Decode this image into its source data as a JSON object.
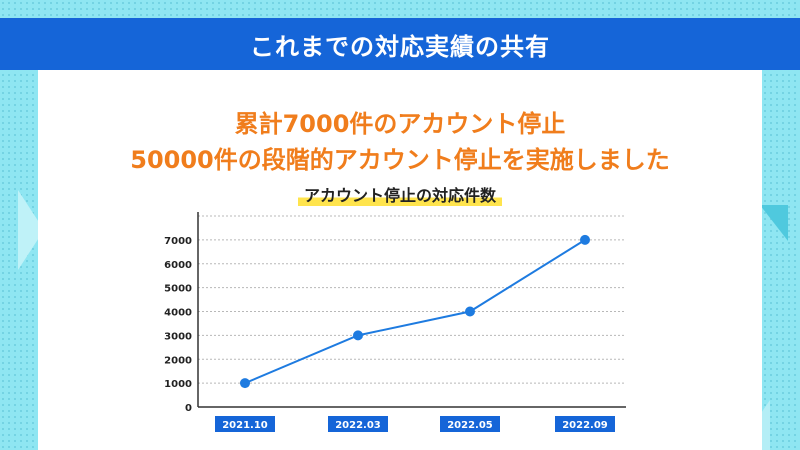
{
  "banner": {
    "title": "これまでの対応実績の共有"
  },
  "headline": {
    "line1": "累計7000件のアカウント停止",
    "line2": "50000件の段階的アカウント停止を実施しました"
  },
  "colors": {
    "banner": "#1565d8",
    "headline": "#f07d1c",
    "line": "#1e7be0",
    "point": "#1e7be0",
    "label_bg": "#1565d8",
    "highlight": "#ffe44d"
  },
  "chart_data": {
    "type": "line",
    "title": "アカウント停止の対応件数",
    "categories": [
      "2021.10",
      "2022.03",
      "2022.05",
      "2022.09"
    ],
    "values": [
      1000,
      3000,
      4000,
      7000
    ],
    "yticks": [
      0,
      1000,
      2000,
      3000,
      4000,
      5000,
      6000,
      7000
    ],
    "ylim": [
      0,
      8000
    ],
    "grid": true,
    "legend": "none"
  }
}
